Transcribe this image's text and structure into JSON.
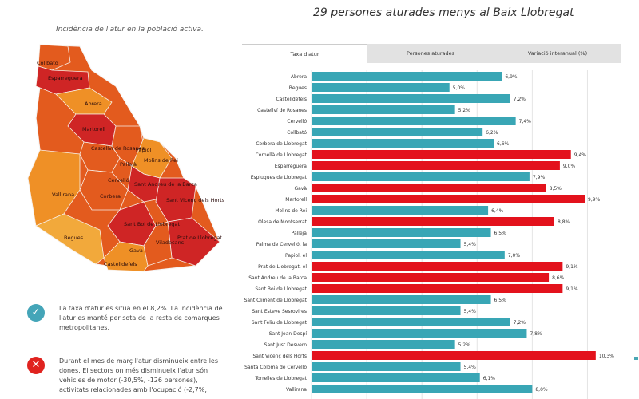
{
  "map": {
    "subtitle": "Incidència de l'atur en la població activa.",
    "labels": [
      "Collbató",
      "Esparreguera",
      "Abrera",
      "Martorell",
      "Castellví de Rosanes",
      "Pallejà",
      "Molins de Rei",
      "Papiol",
      "Corbera",
      "Cervelló",
      "Sant Andreu de la Barca",
      "Sant Vicenç dels Horts",
      "Vallirana",
      "Begues",
      "Gavà",
      "Viladecans",
      "Sant Boi de Llobregat",
      "Prat de Llobregat",
      "Castelldefels"
    ],
    "colors": {
      "high": "#cf2525",
      "mid": "#e35b1e",
      "low": "#ef9026",
      "lowest": "#f2a93b"
    }
  },
  "notes": [
    {
      "icon": "check-icon",
      "symbol": "✓",
      "color": "#44a5b8",
      "text": "La taxa d'atur es situa en el 8,2%. La incidència de l'atur es manté per sota de la resta de comarques metropolitanes."
    },
    {
      "icon": "cross-icon",
      "symbol": "✕",
      "color": "#e0231f",
      "text": "Durant el mes de març l'atur disminueix entre les dones. El sectors on més disminueix l'atur són vehicles de motor (-30,5%, -126 persones), activitats relacionades amb l'ocupació (-2,7%,"
    }
  ],
  "headline": "29 persones aturades menys al Baix Llobregat",
  "tabs": [
    {
      "label": "Taxa d'atur",
      "active": true
    },
    {
      "label": "Persones aturades",
      "active": false
    },
    {
      "label": "Variació interanual (%)",
      "active": false
    }
  ],
  "chart_data": {
    "type": "bar",
    "orientation": "horizontal",
    "title": "Taxa d'atur",
    "categories": [
      "Abrera",
      "Begues",
      "Castelldefels",
      "Castellví de Rosanes",
      "Cervelló",
      "Collbató",
      "Corbera de Llobregat",
      "Cornellà de Llobregat",
      "Esparreguera",
      "Esplugues de Llobregat",
      "Gavà",
      "Martorell",
      "Molins de Rei",
      "Olesa de Montserrat",
      "Pallejà",
      "Palma de Cervelló, la",
      "Papiol, el",
      "Prat de Llobregat, el",
      "Sant Andreu de la Barca",
      "Sant Boi de Llobregat",
      "Sant Climent de Llobregat",
      "Sant Esteve Sesrovires",
      "Sant Feliu de Llobregat",
      "Sant Joan Despí",
      "Sant Just Desvern",
      "Sant Vicenç dels Horts",
      "Santa Coloma de Cervelló",
      "Torrelles de Llobregat",
      "Vallirana"
    ],
    "values": [
      6.9,
      5.0,
      7.2,
      5.2,
      7.4,
      6.2,
      6.6,
      9.4,
      9.0,
      7.9,
      8.5,
      9.9,
      6.4,
      8.8,
      6.5,
      5.4,
      7.0,
      9.1,
      8.6,
      9.1,
      6.5,
      5.4,
      7.2,
      7.8,
      5.2,
      10.3,
      5.4,
      6.1,
      8.0
    ],
    "value_labels": [
      "6,9%",
      "5,0%",
      "7,2%",
      "5,2%",
      "7,4%",
      "6,2%",
      "6,6%",
      "9,4%",
      "9,0%",
      "7,9%",
      "8,5%",
      "9,9%",
      "6,4%",
      "8,8%",
      "6,5%",
      "5,4%",
      "7,0%",
      "9,1%",
      "8,6%",
      "9,1%",
      "6,5%",
      "5,4%",
      "7,2%",
      "7,8%",
      "5,2%",
      "10,3%",
      "5,4%",
      "6,1%",
      "8,0%"
    ],
    "reference_value": 8.2,
    "colors": {
      "below_average": "#39a6b5",
      "above_average": "#e3121c"
    },
    "xlim": [
      0,
      11
    ],
    "grid": true
  }
}
